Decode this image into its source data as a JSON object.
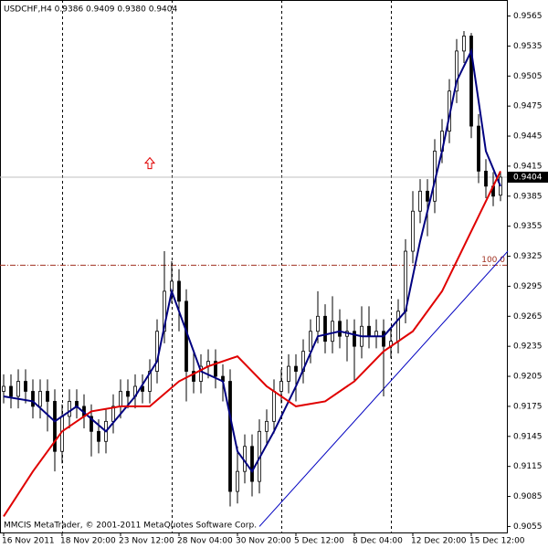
{
  "chart_data": {
    "type": "candlestick",
    "title": "USDCHF,H4  0.9386 0.9409 0.9380 0.9404",
    "footer": "MMCIS MetaTrader, © 2001-2011 MetaQuotes Software Corp.",
    "categories": [
      "16 Nov 2011",
      null,
      null,
      null,
      null,
      null,
      null,
      null,
      "18 Nov 20:00",
      null,
      null,
      null,
      null,
      null,
      null,
      null,
      "23 Nov 12:00",
      null,
      null,
      null,
      null,
      null,
      null,
      null,
      "28 Nov 04:00",
      null,
      null,
      null,
      null,
      null,
      null,
      null,
      "30 Nov 20:00",
      null,
      null,
      null,
      null,
      null,
      null,
      null,
      "5 Dec 12:00",
      null,
      null,
      null,
      null,
      null,
      null,
      null,
      "8 Dec 04:00",
      null,
      null,
      null,
      null,
      null,
      null,
      null,
      "12 Dec 20:00",
      null,
      null,
      null,
      null,
      null,
      null,
      null,
      "15 Dec 12:00",
      null,
      null,
      null,
      null
    ],
    "open": [
      0.919,
      0.9195,
      0.9185,
      0.92,
      0.919,
      0.9175,
      0.919,
      0.918,
      0.913,
      0.9165,
      0.918,
      0.9175,
      0.9165,
      0.915,
      0.914,
      0.916,
      0.9175,
      0.919,
      0.9185,
      0.9195,
      0.919,
      0.921,
      0.925,
      0.929,
      0.93,
      0.928,
      0.921,
      0.92,
      0.9215,
      0.922,
      0.9205,
      0.92,
      0.909,
      0.911,
      0.9135,
      0.91,
      0.915,
      0.916,
      0.919,
      0.92,
      0.9215,
      0.921,
      0.923,
      0.925,
      0.9265,
      0.924,
      0.926,
      0.9245,
      0.925,
      0.9235,
      0.9255,
      0.9245,
      0.925,
      0.9235,
      0.924,
      0.927,
      0.933,
      0.937,
      0.939,
      0.938,
      0.943,
      0.945,
      0.949,
      0.953,
      0.9545,
      0.9455,
      0.941,
      0.9395,
      0.9386
    ],
    "high": [
      0.9207,
      0.9207,
      0.9212,
      0.9212,
      0.9202,
      0.9202,
      0.9202,
      0.9192,
      0.9177,
      0.9192,
      0.9192,
      0.9187,
      0.9177,
      0.9162,
      0.9172,
      0.9187,
      0.9202,
      0.9202,
      0.9207,
      0.9207,
      0.9222,
      0.9262,
      0.933,
      0.932,
      0.9312,
      0.9292,
      0.923,
      0.9227,
      0.9232,
      0.9232,
      0.9217,
      0.9212,
      0.9135,
      0.9147,
      0.9147,
      0.9162,
      0.9172,
      0.9202,
      0.9212,
      0.9227,
      0.9227,
      0.9242,
      0.9262,
      0.929,
      0.9277,
      0.9285,
      0.9272,
      0.9262,
      0.9262,
      0.9275,
      0.9275,
      0.9262,
      0.9262,
      0.9252,
      0.9282,
      0.9342,
      0.939,
      0.9402,
      0.9402,
      0.9442,
      0.9462,
      0.9502,
      0.9542,
      0.955,
      0.9548,
      0.9467,
      0.9422,
      0.9409,
      0.9409
    ],
    "low": [
      0.9178,
      0.9173,
      0.9173,
      0.9178,
      0.9163,
      0.9163,
      0.915,
      0.911,
      0.9118,
      0.9153,
      0.9163,
      0.9153,
      0.9125,
      0.9128,
      0.9128,
      0.9148,
      0.9163,
      0.9173,
      0.9173,
      0.9178,
      0.9178,
      0.9198,
      0.9238,
      0.9278,
      0.925,
      0.918,
      0.9188,
      0.9188,
      0.9203,
      0.9193,
      0.918,
      0.9075,
      0.9078,
      0.9098,
      0.9085,
      0.9088,
      0.9138,
      0.9148,
      0.9178,
      0.9188,
      0.918,
      0.9198,
      0.9218,
      0.9238,
      0.9228,
      0.9228,
      0.9233,
      0.922,
      0.92,
      0.9223,
      0.9233,
      0.9233,
      0.9185,
      0.9223,
      0.9228,
      0.9258,
      0.9318,
      0.9358,
      0.9345,
      0.9368,
      0.9418,
      0.9438,
      0.9478,
      0.9518,
      0.9443,
      0.9398,
      0.9383,
      0.9375,
      0.938
    ],
    "close": [
      0.9195,
      0.9185,
      0.92,
      0.919,
      0.9175,
      0.919,
      0.918,
      0.913,
      0.9165,
      0.918,
      0.9175,
      0.9165,
      0.915,
      0.914,
      0.916,
      0.9175,
      0.919,
      0.9185,
      0.9195,
      0.919,
      0.921,
      0.925,
      0.929,
      0.93,
      0.928,
      0.921,
      0.92,
      0.9215,
      0.922,
      0.9205,
      0.92,
      0.909,
      0.911,
      0.9135,
      0.91,
      0.915,
      0.916,
      0.919,
      0.92,
      0.9215,
      0.921,
      0.923,
      0.925,
      0.9265,
      0.924,
      0.926,
      0.9245,
      0.925,
      0.9235,
      0.9255,
      0.9245,
      0.925,
      0.9235,
      0.924,
      0.927,
      0.933,
      0.937,
      0.939,
      0.938,
      0.943,
      0.945,
      0.949,
      0.953,
      0.9545,
      0.9455,
      0.941,
      0.9395,
      0.9385,
      0.9404
    ],
    "series": [
      {
        "color": "#000080",
        "x": [
          0,
          4,
          7,
          10,
          14,
          18,
          21,
          23,
          25,
          27,
          30,
          32,
          34,
          37,
          40,
          43,
          46,
          49,
          52,
          55,
          57,
          60,
          62,
          64,
          66,
          68
        ],
        "values": [
          0.9185,
          0.918,
          0.916,
          0.9175,
          0.915,
          0.9185,
          0.922,
          0.929,
          0.925,
          0.921,
          0.92,
          0.913,
          0.911,
          0.915,
          0.9195,
          0.9245,
          0.925,
          0.9245,
          0.9245,
          0.927,
          0.934,
          0.943,
          0.95,
          0.953,
          0.943,
          0.9395
        ]
      },
      {
        "color": "#e00000",
        "x": [
          0,
          4,
          8,
          12,
          16,
          20,
          24,
          28,
          32,
          36,
          40,
          44,
          48,
          52,
          56,
          60,
          64,
          68
        ],
        "values": [
          0.9065,
          0.911,
          0.915,
          0.917,
          0.9175,
          0.9175,
          0.92,
          0.9215,
          0.9225,
          0.9195,
          0.9175,
          0.918,
          0.92,
          0.923,
          0.925,
          0.929,
          0.935,
          0.941
        ]
      }
    ],
    "trendline": {
      "color": "#0000c0",
      "x": [
        35,
        69
      ],
      "values": [
        0.9055,
        0.933
      ]
    },
    "level": {
      "value": 0.9316,
      "label": "100.0",
      "color": "#a03020"
    },
    "current_price": 0.9404,
    "arrow": {
      "x": 20,
      "value": 0.9418,
      "color": "#e00000"
    },
    "separators": [
      8,
      23,
      38,
      53
    ],
    "xlim": [
      -0.5,
      68.875
    ],
    "ylim": [
      0.9049,
      0.9581
    ],
    "yticks": [
      0.9565,
      0.9535,
      0.9505,
      0.9475,
      0.9445,
      0.9415,
      0.9385,
      0.9355,
      0.9325,
      0.9295,
      0.9265,
      0.9235,
      0.9205,
      0.9175,
      0.9145,
      0.9115,
      0.9085,
      0.9055
    ]
  }
}
